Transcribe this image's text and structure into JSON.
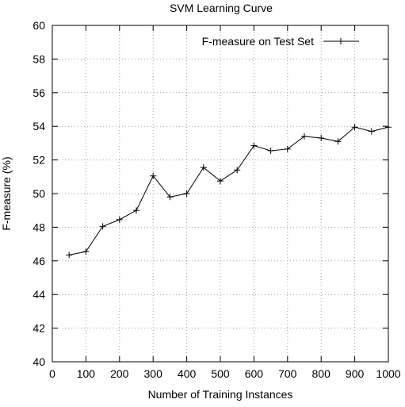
{
  "chart_data": {
    "type": "line",
    "title": "SVM Learning Curve",
    "xlabel": "Number of Training Instances",
    "ylabel": "F-measure (%)",
    "xlim": [
      0,
      1000
    ],
    "ylim": [
      40,
      60
    ],
    "xticks": [
      0,
      100,
      200,
      300,
      400,
      500,
      600,
      700,
      800,
      900,
      1000
    ],
    "yticks": [
      40,
      42,
      44,
      46,
      48,
      50,
      52,
      54,
      56,
      58,
      60
    ],
    "grid": true,
    "legend_position": "top-right",
    "series": [
      {
        "name": "F-measure on Test Set",
        "color": "#000000",
        "marker": "plus",
        "x": [
          50,
          100,
          150,
          200,
          250,
          300,
          350,
          400,
          450,
          500,
          550,
          600,
          650,
          700,
          750,
          800,
          850,
          900,
          950,
          1000
        ],
        "y": [
          46.35,
          46.55,
          48.05,
          48.45,
          49.0,
          51.05,
          49.8,
          50.0,
          51.55,
          50.75,
          51.4,
          52.85,
          52.55,
          52.65,
          53.4,
          53.3,
          53.1,
          53.95,
          53.7,
          53.95
        ]
      }
    ]
  }
}
